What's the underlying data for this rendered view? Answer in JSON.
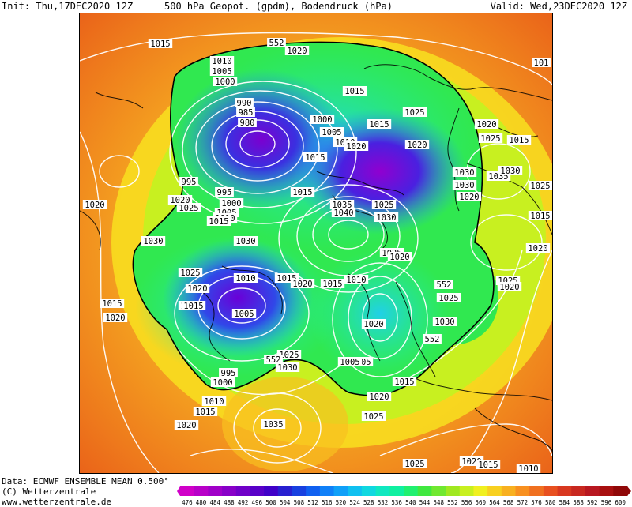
{
  "header": {
    "init": "Init: Thu,17DEC2020 12Z",
    "title": "500 hPa Geopot. (gpdm), Bodendruck (hPa)",
    "valid": "Valid: Wed,23DEC2020 12Z"
  },
  "footer": {
    "data_line": "Data: ECMWF ENSEMBLE MEAN 0.500°",
    "copyright": "(C) Wetterzentrale",
    "url": "www.wetterzentrale.de"
  },
  "colors": {
    "background": "#ffffff",
    "isobar": "#ffffff",
    "coast": "#000000",
    "low_center": "#6a00d8",
    "high_fringe": "#f05a10"
  },
  "color_scale": {
    "values": [
      "476",
      "480",
      "484",
      "488",
      "492",
      "496",
      "500",
      "504",
      "508",
      "512",
      "516",
      "520",
      "524",
      "528",
      "532",
      "536",
      "540",
      "544",
      "548",
      "552",
      "556",
      "560",
      "564",
      "568",
      "572",
      "576",
      "580",
      "584",
      "588",
      "592",
      "596",
      "600"
    ],
    "colors": [
      "#d000c8",
      "#b800c8",
      "#a000c8",
      "#8800c8",
      "#7000c8",
      "#5800c8",
      "#4000c8",
      "#2820d0",
      "#1840e0",
      "#1060f0",
      "#1080f8",
      "#10a0f8",
      "#10c0f0",
      "#10d8e0",
      "#10e8c0",
      "#10f0a0",
      "#20f070",
      "#40e840",
      "#70e830",
      "#a0e820",
      "#c8f020",
      "#f0f020",
      "#f8d020",
      "#f8b020",
      "#f89020",
      "#f07020",
      "#e85020",
      "#d83820",
      "#c82820",
      "#b81820",
      "#a81010",
      "#900808"
    ]
  },
  "map": {
    "pressure_labels": [
      {
        "text": "1015"
      },
      {
        "text": "552"
      },
      {
        "text": "1020"
      },
      {
        "text": "1010"
      },
      {
        "text": "1005"
      },
      {
        "text": "1000"
      },
      {
        "text": "990"
      },
      {
        "text": "985"
      },
      {
        "text": "980"
      },
      {
        "text": "1015"
      },
      {
        "text": "1000"
      },
      {
        "text": "1005"
      },
      {
        "text": "1010"
      },
      {
        "text": "1020"
      },
      {
        "text": "1015"
      },
      {
        "text": "1025"
      },
      {
        "text": "1020"
      },
      {
        "text": "1015"
      },
      {
        "text": "1020"
      },
      {
        "text": "1025"
      },
      {
        "text": "1015"
      },
      {
        "text": "1030"
      },
      {
        "text": "1035"
      },
      {
        "text": "1030"
      },
      {
        "text": "1030"
      },
      {
        "text": "1020"
      },
      {
        "text": "995"
      },
      {
        "text": "1015"
      },
      {
        "text": "995"
      },
      {
        "text": "1000"
      },
      {
        "text": "1005"
      },
      {
        "text": "1020"
      },
      {
        "text": "1025"
      },
      {
        "text": "1010"
      },
      {
        "text": "1015"
      },
      {
        "text": "1035"
      },
      {
        "text": "1040"
      },
      {
        "text": "1025"
      },
      {
        "text": "1030"
      },
      {
        "text": "1020"
      },
      {
        "text": "1030"
      },
      {
        "text": "1025"
      },
      {
        "text": "1020"
      },
      {
        "text": "1020"
      },
      {
        "text": "1030"
      },
      {
        "text": "1025"
      },
      {
        "text": "1020"
      },
      {
        "text": "1010"
      },
      {
        "text": "1015"
      },
      {
        "text": "1020"
      },
      {
        "text": "1015"
      },
      {
        "text": "1010"
      },
      {
        "text": "1025"
      },
      {
        "text": "1020"
      },
      {
        "text": "1015"
      },
      {
        "text": "1005"
      },
      {
        "text": "1005"
      },
      {
        "text": "1025"
      },
      {
        "text": "1030"
      },
      {
        "text": "1030"
      },
      {
        "text": "1025"
      },
      {
        "text": "1020"
      },
      {
        "text": "1015"
      },
      {
        "text": "1020"
      },
      {
        "text": "995"
      },
      {
        "text": "1000"
      },
      {
        "text": "1010"
      },
      {
        "text": "1015"
      },
      {
        "text": "1020"
      },
      {
        "text": "1035"
      },
      {
        "text": "1025"
      },
      {
        "text": "1025"
      },
      {
        "text": "1020"
      },
      {
        "text": "1015"
      },
      {
        "text": "1010"
      },
      {
        "text": "1025"
      },
      {
        "text": "1015"
      },
      {
        "text": "1020"
      },
      {
        "text": "552"
      },
      {
        "text": "552"
      },
      {
        "text": "552"
      },
      {
        "text": "1005"
      },
      {
        "text": "1015"
      },
      {
        "text": "1020"
      },
      {
        "text": "101"
      }
    ]
  }
}
